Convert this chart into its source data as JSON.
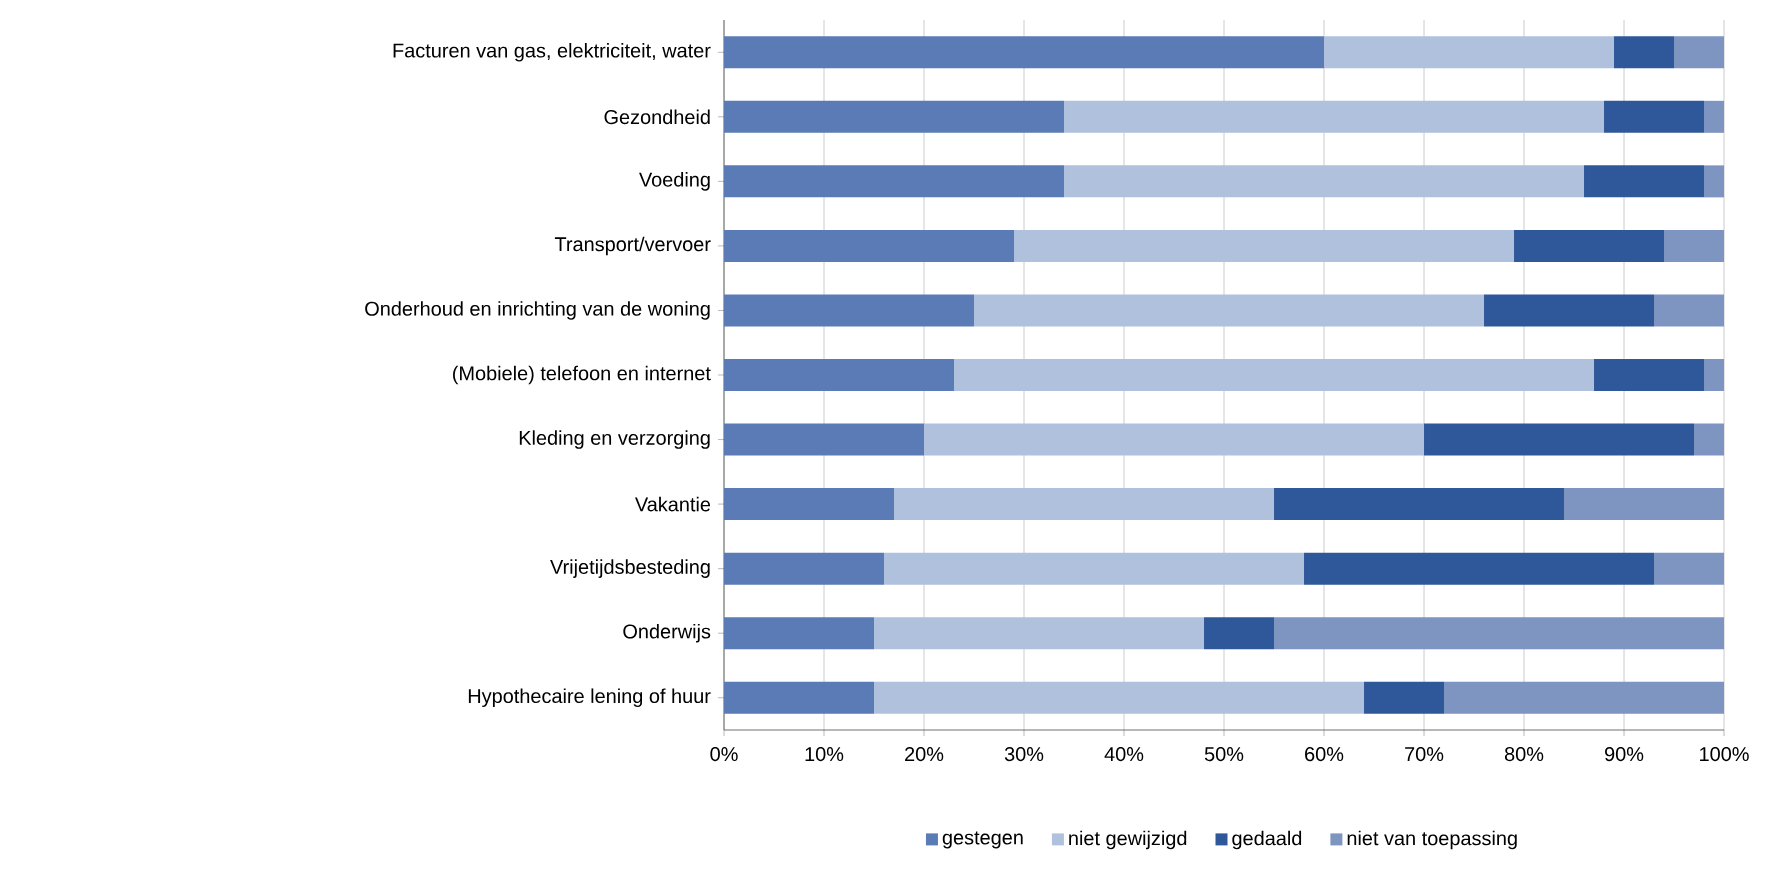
{
  "chart_data": {
    "type": "bar",
    "orientation": "horizontal",
    "stacked": true,
    "categories": [
      "Facturen van gas, elektriciteit, water",
      "Gezondheid",
      "Voeding",
      "Transport/vervoer",
      "Onderhoud en inrichting van de woning",
      "(Mobiele) telefoon en internet",
      "Kleding en verzorging",
      "Vakantie",
      "Vrijetijdsbesteding",
      "Onderwijs",
      "Hypothecaire lening of huur"
    ],
    "series": [
      {
        "name": "gestegen",
        "color": "#5a7bb5",
        "values": [
          60,
          34,
          34,
          29,
          25,
          23,
          20,
          17,
          16,
          15,
          15
        ]
      },
      {
        "name": "niet gewijzigd",
        "color": "#b0c1dd",
        "values": [
          29,
          54,
          52,
          50,
          51,
          64,
          50,
          38,
          42,
          33,
          49
        ]
      },
      {
        "name": "gedaald",
        "color": "#2e5899",
        "values": [
          6,
          10,
          12,
          15,
          17,
          11,
          27,
          29,
          35,
          7,
          8
        ]
      },
      {
        "name": "niet van toepassing",
        "color": "#7d95c0",
        "values": [
          5,
          2,
          2,
          6,
          7,
          2,
          3,
          16,
          7,
          45,
          28
        ]
      }
    ],
    "xlim": [
      0,
      100
    ],
    "xticks": [
      {
        "value": 0,
        "label": "0%"
      },
      {
        "value": 10,
        "label": "10%"
      },
      {
        "value": 20,
        "label": "20%"
      },
      {
        "value": 30,
        "label": "30%"
      },
      {
        "value": 40,
        "label": "40%"
      },
      {
        "value": 50,
        "label": "50%"
      },
      {
        "value": 60,
        "label": "60%"
      },
      {
        "value": 70,
        "label": "70%"
      },
      {
        "value": 80,
        "label": "80%"
      },
      {
        "value": 90,
        "label": "90%"
      },
      {
        "value": 100,
        "label": "100%"
      }
    ],
    "grid": "x",
    "legend": "bottom"
  }
}
